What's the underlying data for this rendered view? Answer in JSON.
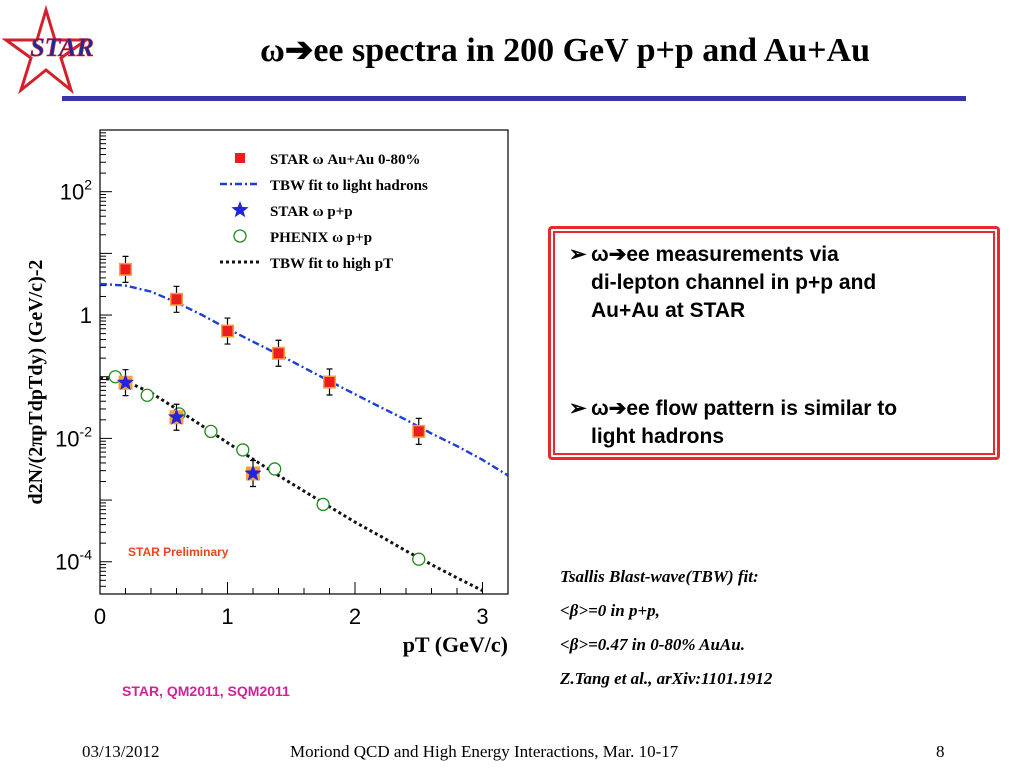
{
  "logo": {
    "text": "STAR"
  },
  "slide": {
    "title": "ω➔ee spectra in 200 GeV p+p and Au+Au",
    "bullets": [
      "ω➔ee measurements via\ndi-lepton channel in p+p and\nAu+Au at STAR",
      "ω➔ee flow pattern is similar to\nlight hadrons"
    ],
    "bullet_marker": "➢",
    "notes": [
      "Tsallis Blast-wave(TBW) fit:",
      "<β>=0 in p+p,",
      "<β>=0.47 in 0-80% AuAu.",
      "Z.Tang et al., arXiv:1101.1912"
    ],
    "citation": "STAR, QM2011, SQM2011",
    "footer": {
      "date": "03/13/2012",
      "conference": "Moriond QCD and High Energy Interactions, Mar. 10-17",
      "page": "8"
    }
  },
  "chart_data": {
    "type": "scatter",
    "xlabel": "pT (GeV/c)",
    "ylabel": "d2N/(2πpTdpTdy) (GeV/c)-2",
    "xlim": [
      0,
      3.2
    ],
    "ylim": [
      3e-05,
      1000
    ],
    "yscale": "log",
    "xticks": [
      0,
      1,
      2,
      3
    ],
    "yticks": [
      {
        "value": 100,
        "base": "10",
        "exp": "2"
      },
      {
        "value": 1,
        "base": "1",
        "exp": ""
      },
      {
        "value": 0.01,
        "base": "10",
        "exp": "-2"
      },
      {
        "value": 0.0001,
        "base": "10",
        "exp": "-4"
      }
    ],
    "annotation": "STAR Preliminary",
    "legend_position": "top-right",
    "colors": {
      "auau": "#ee1c1c",
      "auau_fill": "#f3a23b",
      "pp": "#2323d8",
      "phenix": "#1f8a1f",
      "tbw_light": "#1a3fd6",
      "tbw_high": "#111111"
    },
    "series": [
      {
        "name": "STAR ω Au+Au 0-80%",
        "marker": "square",
        "x": [
          0.2,
          0.6,
          1.0,
          1.4,
          1.8,
          2.5
        ],
        "y": [
          5.5,
          1.8,
          0.55,
          0.24,
          0.082,
          0.013
        ]
      },
      {
        "name": "TBW fit to light hadrons",
        "marker": "dash-dot-line",
        "x": [
          0,
          0.2,
          0.4,
          0.6,
          0.8,
          1.0,
          1.2,
          1.4,
          1.6,
          1.8,
          2.0,
          2.2,
          2.4,
          2.6,
          2.8,
          3.0,
          3.2
        ],
        "y": [
          3.2,
          3.0,
          2.4,
          1.6,
          1.0,
          0.6,
          0.37,
          0.23,
          0.14,
          0.085,
          0.052,
          0.032,
          0.02,
          0.012,
          0.0075,
          0.0045,
          0.0025
        ]
      },
      {
        "name": "STAR ω p+p",
        "marker": "star",
        "x": [
          0.2,
          0.6,
          1.2
        ],
        "y": [
          0.08,
          0.022,
          0.0027
        ]
      },
      {
        "name": "PHENIX ω p+p",
        "marker": "open-circle",
        "x": [
          0.12,
          0.37,
          0.62,
          0.87,
          1.12,
          1.37,
          1.75,
          2.5
        ],
        "y": [
          0.1,
          0.05,
          0.025,
          0.013,
          0.0065,
          0.0032,
          0.00085,
          0.00011
        ]
      },
      {
        "name": "TBW fit to high pT",
        "marker": "dotted-line",
        "x": [
          0,
          0.2,
          0.4,
          0.6,
          0.8,
          1.0,
          1.2,
          1.4,
          1.6,
          1.8,
          2.0,
          2.2,
          2.4,
          2.6,
          2.8,
          3.0
        ],
        "y": [
          0.095,
          0.085,
          0.055,
          0.03,
          0.016,
          0.0085,
          0.0046,
          0.0025,
          0.0014,
          0.00078,
          0.00044,
          0.00026,
          0.00015,
          9e-05,
          5.5e-05,
          3.4e-05
        ]
      }
    ]
  }
}
